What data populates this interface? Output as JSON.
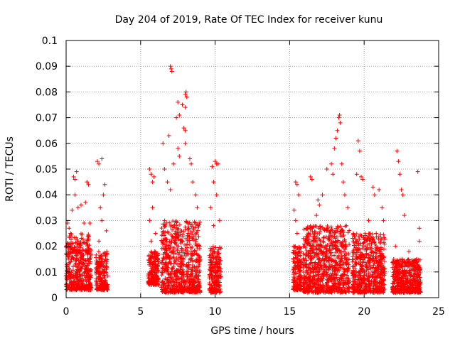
{
  "chart_data": {
    "type": "scatter",
    "title": "Day 204 of 2019, Rate Of TEC Index for receiver kunu",
    "xlabel": "GPS time / hours",
    "ylabel": "ROTI / TECUs",
    "xlim": [
      0,
      25
    ],
    "ylim": [
      0,
      0.1
    ],
    "xticks": [
      "0",
      "5",
      "10",
      "15",
      "20",
      "25"
    ],
    "yticks": [
      "0",
      "0.01",
      "0.02",
      "0.03",
      "0.04",
      "0.05",
      "0.06",
      "0.07",
      "0.08",
      "0.09",
      "0.1"
    ],
    "grid": true,
    "marker": "+",
    "color": "#ff0000",
    "clusters": [
      {
        "x_range": [
          0.0,
          1.7
        ],
        "typical_range": [
          0.003,
          0.025
        ],
        "outliers": [
          [
            0.1,
            0.029
          ],
          [
            0.2,
            0.027
          ],
          [
            0.3,
            0.025
          ],
          [
            0.4,
            0.034
          ],
          [
            0.5,
            0.047
          ],
          [
            0.6,
            0.046
          ],
          [
            0.7,
            0.049
          ],
          [
            0.6,
            0.04
          ],
          [
            0.8,
            0.035
          ],
          [
            1.0,
            0.036
          ],
          [
            1.2,
            0.029
          ],
          [
            1.3,
            0.037
          ],
          [
            1.4,
            0.045
          ],
          [
            1.5,
            0.044
          ],
          [
            1.6,
            0.029
          ]
        ]
      },
      {
        "x_range": [
          2.0,
          2.8
        ],
        "typical_range": [
          0.003,
          0.018
        ],
        "outliers": [
          [
            2.1,
            0.053
          ],
          [
            2.2,
            0.052
          ],
          [
            2.4,
            0.054
          ],
          [
            2.3,
            0.035
          ],
          [
            2.5,
            0.04
          ],
          [
            2.6,
            0.044
          ],
          [
            2.4,
            0.03
          ],
          [
            2.7,
            0.026
          ],
          [
            2.2,
            0.022
          ]
        ]
      },
      {
        "x_range": [
          5.5,
          6.2
        ],
        "typical_range": [
          0.005,
          0.018
        ],
        "outliers": [
          [
            5.6,
            0.05
          ],
          [
            5.7,
            0.048
          ],
          [
            5.8,
            0.045
          ],
          [
            5.9,
            0.047
          ],
          [
            5.6,
            0.03
          ],
          [
            5.8,
            0.035
          ],
          [
            6.0,
            0.025
          ],
          [
            5.7,
            0.022
          ]
        ]
      },
      {
        "x_range": [
          6.4,
          9.0
        ],
        "typical_range": [
          0.002,
          0.03
        ],
        "outliers": [
          [
            6.9,
            0.063
          ],
          [
            7.0,
            0.09
          ],
          [
            7.05,
            0.089
          ],
          [
            7.1,
            0.088
          ],
          [
            7.4,
            0.07
          ],
          [
            7.5,
            0.076
          ],
          [
            7.6,
            0.071
          ],
          [
            7.8,
            0.075
          ],
          [
            8.0,
            0.079
          ],
          [
            8.05,
            0.08
          ],
          [
            8.1,
            0.078
          ],
          [
            8.0,
            0.074
          ],
          [
            7.9,
            0.066
          ],
          [
            8.0,
            0.065
          ],
          [
            8.0,
            0.06
          ],
          [
            7.5,
            0.058
          ],
          [
            7.2,
            0.052
          ],
          [
            7.6,
            0.055
          ],
          [
            8.3,
            0.054
          ],
          [
            8.4,
            0.052
          ],
          [
            6.5,
            0.06
          ],
          [
            6.6,
            0.05
          ],
          [
            6.8,
            0.045
          ],
          [
            7.0,
            0.042
          ],
          [
            8.5,
            0.045
          ],
          [
            8.7,
            0.04
          ],
          [
            8.8,
            0.035
          ]
        ]
      },
      {
        "x_range": [
          9.6,
          10.4
        ],
        "typical_range": [
          0.002,
          0.02
        ],
        "outliers": [
          [
            9.8,
            0.051
          ],
          [
            10.0,
            0.053
          ],
          [
            10.1,
            0.052
          ],
          [
            10.2,
            0.052
          ],
          [
            9.9,
            0.045
          ],
          [
            10.1,
            0.04
          ],
          [
            9.7,
            0.035
          ],
          [
            10.3,
            0.03
          ],
          [
            9.9,
            0.028
          ]
        ]
      },
      {
        "x_range": [
          15.2,
          15.8
        ],
        "typical_range": [
          0.003,
          0.02
        ],
        "outliers": [
          [
            15.3,
            0.034
          ],
          [
            15.4,
            0.045
          ],
          [
            15.5,
            0.044
          ],
          [
            15.6,
            0.04
          ],
          [
            15.4,
            0.03
          ],
          [
            15.5,
            0.025
          ]
        ]
      },
      {
        "x_range": [
          15.9,
          19.0
        ],
        "typical_range": [
          0.002,
          0.028
        ],
        "outliers": [
          [
            16.4,
            0.047
          ],
          [
            16.5,
            0.046
          ],
          [
            16.8,
            0.032
          ],
          [
            17.0,
            0.036
          ],
          [
            17.5,
            0.05
          ],
          [
            17.8,
            0.052
          ],
          [
            17.9,
            0.048
          ],
          [
            18.0,
            0.058
          ],
          [
            18.2,
            0.065
          ],
          [
            18.3,
            0.07
          ],
          [
            18.35,
            0.071
          ],
          [
            18.4,
            0.068
          ],
          [
            18.1,
            0.062
          ],
          [
            18.5,
            0.052
          ],
          [
            18.6,
            0.045
          ],
          [
            18.7,
            0.04
          ],
          [
            18.9,
            0.035
          ],
          [
            17.2,
            0.04
          ],
          [
            16.9,
            0.038
          ]
        ]
      },
      {
        "x_range": [
          19.2,
          21.4
        ],
        "typical_range": [
          0.002,
          0.025
        ],
        "outliers": [
          [
            19.6,
            0.061
          ],
          [
            19.7,
            0.057
          ],
          [
            19.5,
            0.048
          ],
          [
            19.8,
            0.047
          ],
          [
            19.9,
            0.046
          ],
          [
            20.6,
            0.043
          ],
          [
            20.7,
            0.04
          ],
          [
            21.0,
            0.042
          ],
          [
            21.2,
            0.035
          ],
          [
            20.3,
            0.03
          ],
          [
            21.3,
            0.03
          ]
        ]
      },
      {
        "x_range": [
          21.9,
          23.8
        ],
        "typical_range": [
          0.002,
          0.015
        ],
        "outliers": [
          [
            22.2,
            0.057
          ],
          [
            22.3,
            0.053
          ],
          [
            22.4,
            0.048
          ],
          [
            22.5,
            0.042
          ],
          [
            22.6,
            0.04
          ],
          [
            22.7,
            0.032
          ],
          [
            23.6,
            0.049
          ],
          [
            23.7,
            0.027
          ],
          [
            23.7,
            0.022
          ],
          [
            22.1,
            0.02
          ],
          [
            23.0,
            0.018
          ]
        ]
      }
    ]
  }
}
